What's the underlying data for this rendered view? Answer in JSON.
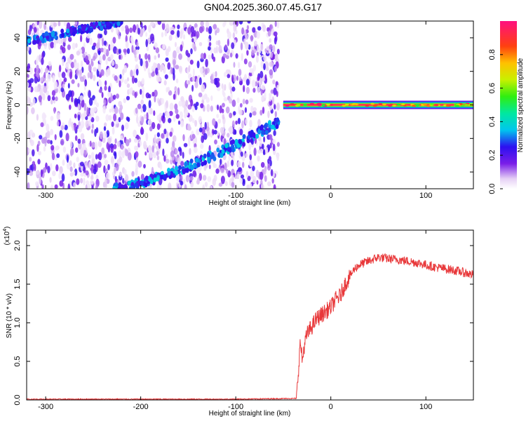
{
  "title": "GN04.2025.360.07.45.G17",
  "chart_data": [
    {
      "type": "heatmap",
      "xlabel": "Height of straight line (km)",
      "ylabel": "Frequency (Hz)",
      "xlim": [
        -320,
        150
      ],
      "ylim": [
        -50,
        50
      ],
      "xticks": [
        "-300",
        "-200",
        "-100",
        "0",
        "100"
      ],
      "yticks": [
        "-40",
        "-20",
        "0",
        "20",
        "40"
      ],
      "colorbar": {
        "label": "Normalized spectral amplitude",
        "range": [
          0.0,
          1.0
        ],
        "ticks": [
          "0.0",
          "0.2",
          "0.4",
          "0.6",
          "0.8"
        ]
      },
      "features": {
        "noise_region_x": [
          -320,
          -55
        ],
        "direct_line": {
          "x": [
            -50,
            150
          ],
          "freq": 0,
          "amplitude": 1.0
        },
        "lower_branch": {
          "x": [
            -230,
            -55
          ],
          "freq_start": -50,
          "freq_end": -10
        },
        "upper_branch": {
          "x": [
            -320,
            -220
          ],
          "freq_start": 38,
          "freq_end": 50
        }
      }
    },
    {
      "type": "line",
      "xlabel": "Height of straight line (km)",
      "ylabel": "SNR (10 * v/v)",
      "yscale_note": "(x10",
      "yscale_exp": "4",
      "xlim": [
        -320,
        150
      ],
      "ylim": [
        0,
        2.2
      ],
      "xticks": [
        "-300",
        "-200",
        "-100",
        "0",
        "100"
      ],
      "yticks": [
        "0.0",
        "0.5",
        "1.0",
        "1.5",
        "2.0"
      ],
      "series": [
        {
          "color": "#e8383a",
          "x": [
            -320,
            -100,
            -36,
            -33,
            -32,
            -30,
            -28,
            -25,
            -20,
            -15,
            -10,
            -5,
            0,
            5,
            10,
            15,
            20,
            25,
            30,
            40,
            50,
            60,
            70,
            80,
            90,
            100,
            110,
            120,
            130,
            140,
            150
          ],
          "y": [
            0.01,
            0.01,
            0.02,
            0.6,
            0.75,
            0.5,
            0.7,
            0.85,
            0.95,
            1.05,
            1.1,
            1.15,
            1.2,
            1.3,
            1.35,
            1.5,
            1.6,
            1.7,
            1.75,
            1.8,
            1.85,
            1.83,
            1.82,
            1.8,
            1.78,
            1.75,
            1.72,
            1.7,
            1.68,
            1.65,
            1.62
          ]
        }
      ]
    }
  ]
}
